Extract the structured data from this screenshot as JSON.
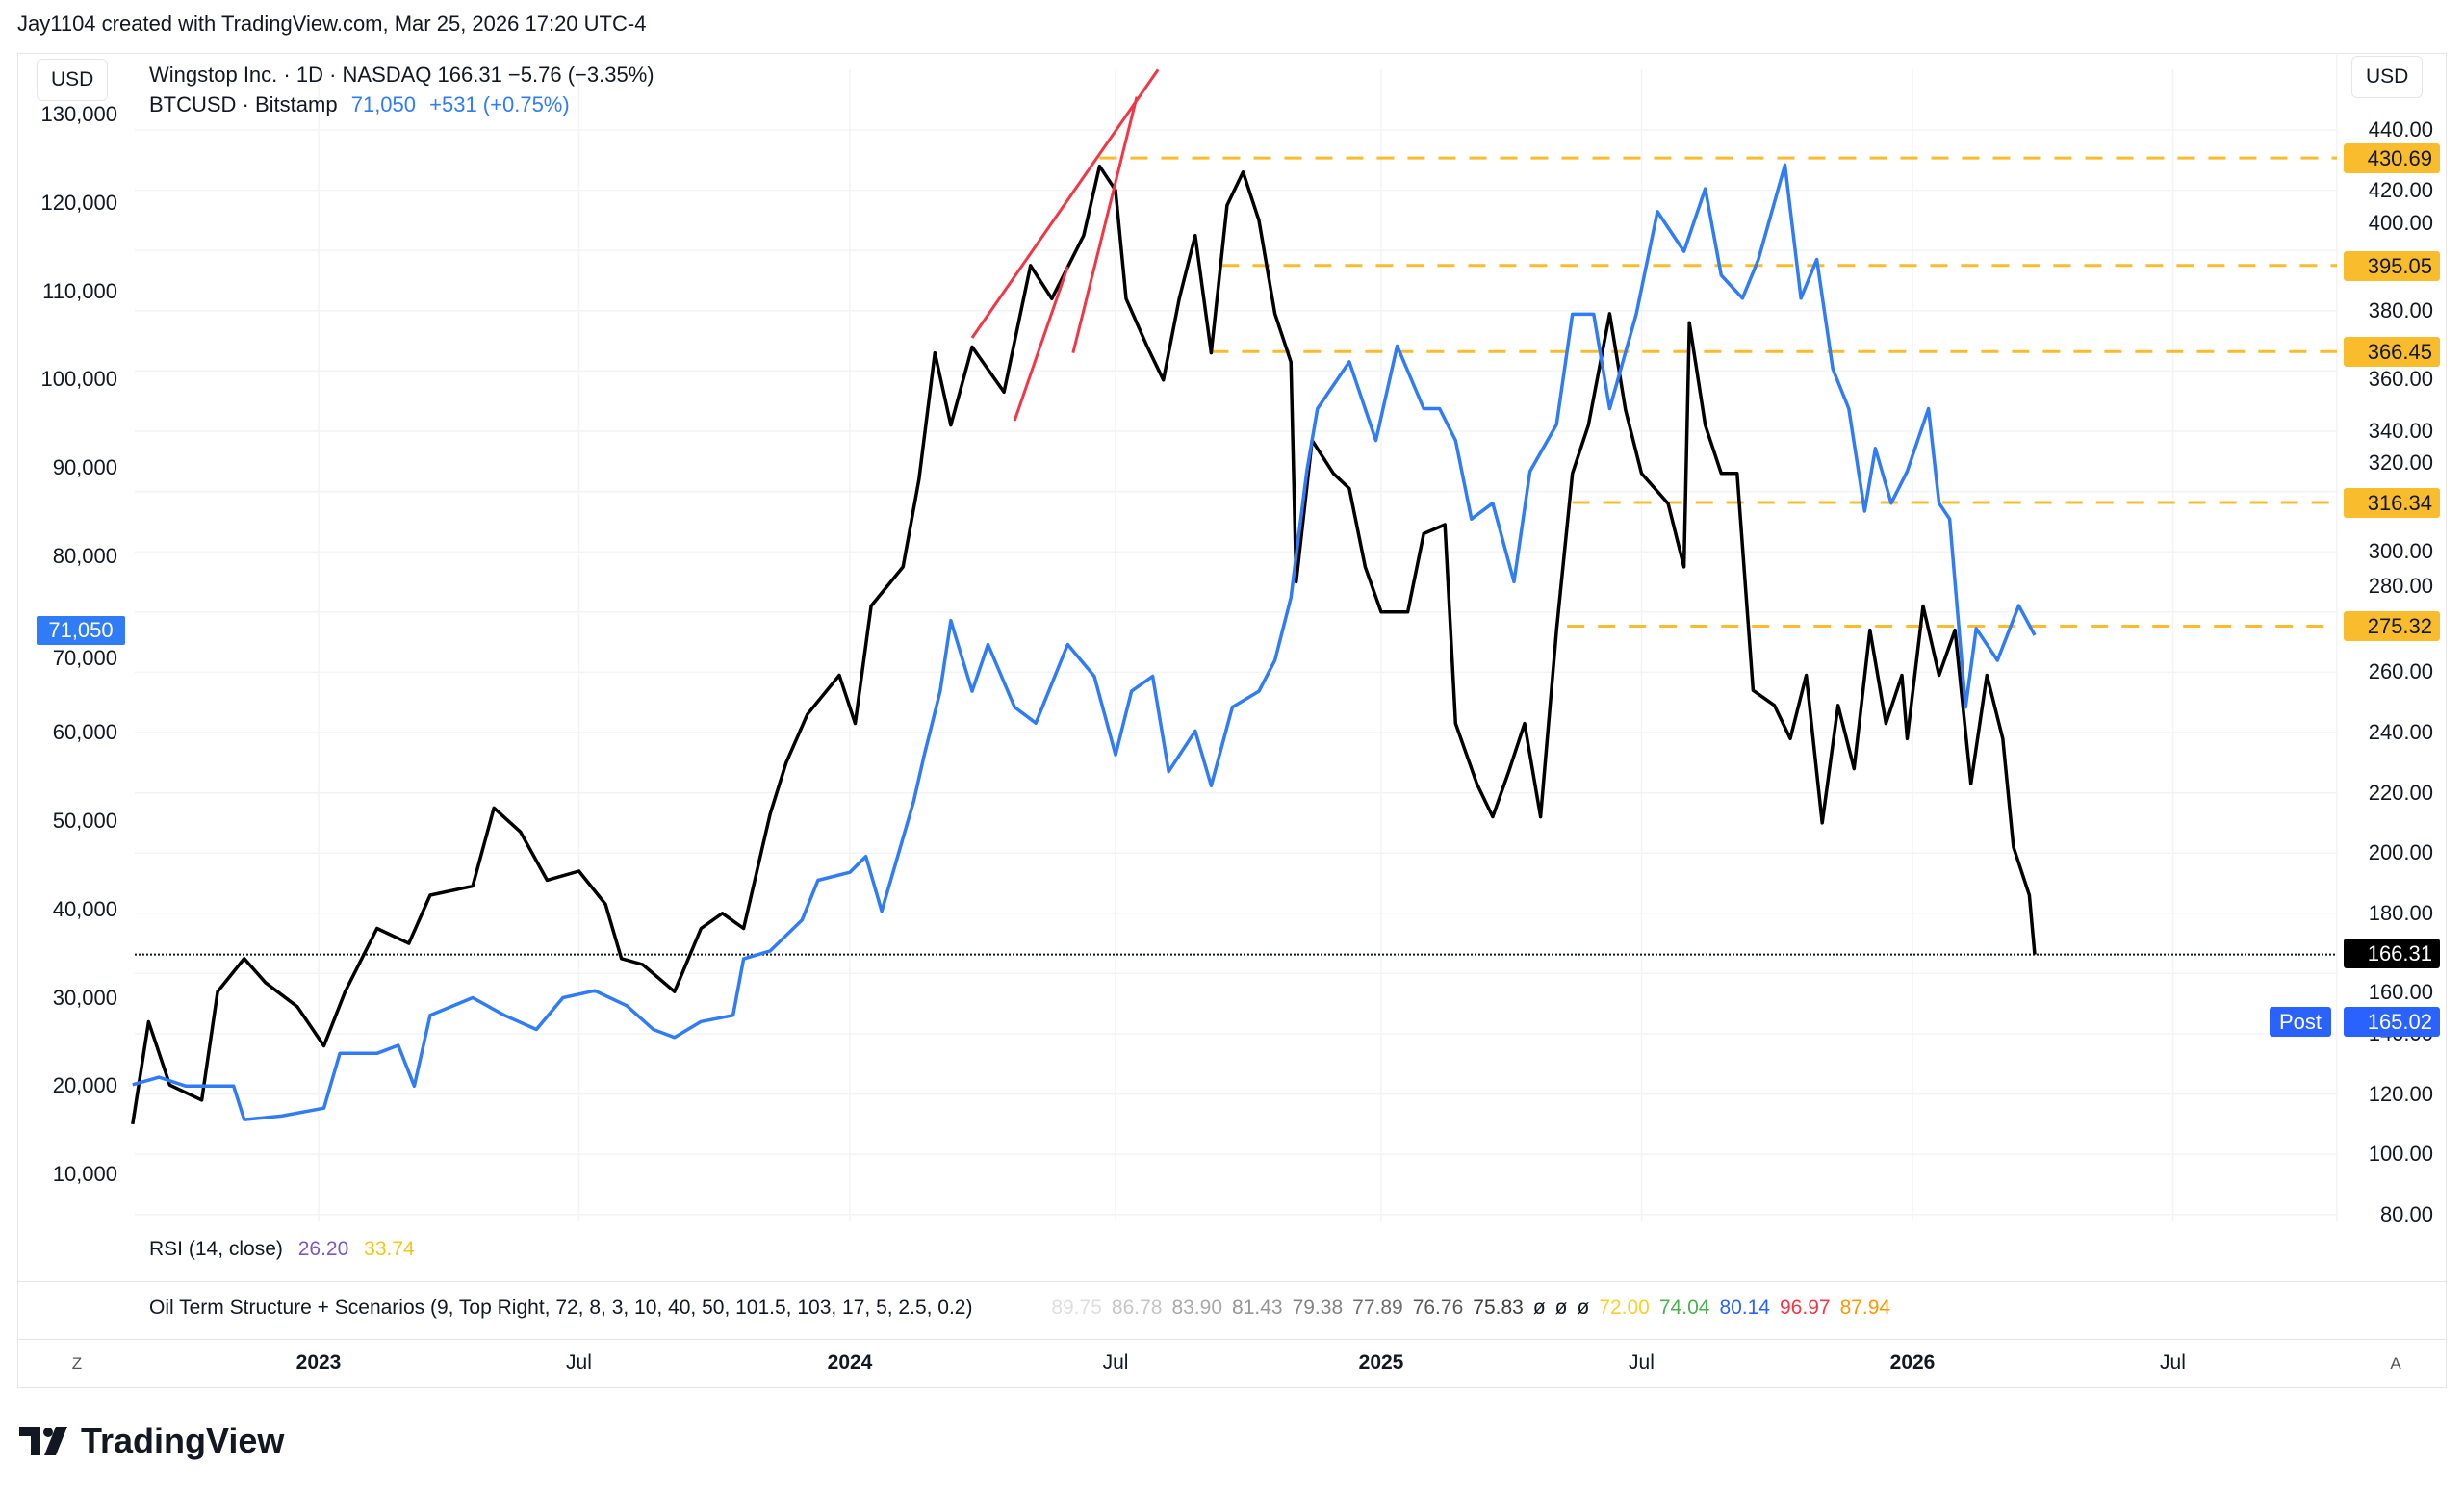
{
  "header": {
    "credit": "Jay1104 created with TradingView.com, Mar 25, 2026 17:20 UTC-4"
  },
  "legend": {
    "main": "Wingstop Inc. · 1D · NASDAQ  166.31  −5.76 (−3.35%)",
    "compare_name": "BTCUSD · Bitstamp",
    "compare_price": "71,050",
    "compare_change": "+531 (+0.75%)"
  },
  "currency_left": "USD",
  "currency_right": "USD",
  "indicators": {
    "rsi": {
      "label": "RSI (14, close)",
      "v1": "26.20",
      "v2": "33.74",
      "c1": "#7e57c2",
      "c2": "#f5c518"
    },
    "oil": {
      "label": "Oil Term Structure + Scenarios (9, Top Right, 72, 8, 3, 10, 40, 50, 101.5, 103, 17, 5, 2.5, 0.2)",
      "values": [
        {
          "t": "89.75",
          "c": "#dedede"
        },
        {
          "t": "86.78",
          "c": "#c6c6c6"
        },
        {
          "t": "83.90",
          "c": "#a9a9a9"
        },
        {
          "t": "81.43",
          "c": "#959595"
        },
        {
          "t": "79.38",
          "c": "#838383"
        },
        {
          "t": "77.89",
          "c": "#6e6e6e"
        },
        {
          "t": "76.76",
          "c": "#595959"
        },
        {
          "t": "75.83",
          "c": "#3e3e3e"
        },
        {
          "t": "ø",
          "c": "#131722"
        },
        {
          "t": "ø",
          "c": "#131722"
        },
        {
          "t": "ø",
          "c": "#131722"
        },
        {
          "t": "72.00",
          "c": "#f9cf2a"
        },
        {
          "t": "74.04",
          "c": "#4caf50"
        },
        {
          "t": "80.14",
          "c": "#2962ff"
        },
        {
          "t": "96.97",
          "c": "#f23645"
        },
        {
          "t": "87.94",
          "c": "#ff9800"
        }
      ]
    }
  },
  "time_axis": {
    "ticks": [
      {
        "label": "2023",
        "x": 2023.0,
        "bold": true
      },
      {
        "label": "Jul",
        "x": 2023.49,
        "bold": false
      },
      {
        "label": "2024",
        "x": 2024.0,
        "bold": true
      },
      {
        "label": "Jul",
        "x": 2024.5,
        "bold": false
      },
      {
        "label": "2025",
        "x": 2025.0,
        "bold": true
      },
      {
        "label": "Jul",
        "x": 2025.49,
        "bold": false
      },
      {
        "label": "2026",
        "x": 2026.0,
        "bold": true
      },
      {
        "label": "Jul",
        "x": 2026.49,
        "bold": false
      }
    ],
    "left_btn": "Z",
    "right_btn": "A"
  },
  "logo": "TradingView",
  "chart_data": {
    "type": "line",
    "x_unit": "decimal year",
    "xlim": [
      2022.62,
      2026.91
    ],
    "left_axis": {
      "ticks": [
        "130,000",
        "120,000",
        "110,000",
        "100,000",
        "90,000",
        "80,000",
        "70,000",
        "60,000",
        "50,000",
        "40,000",
        "30,000",
        "20,000",
        "10,000"
      ],
      "values": [
        130000,
        120000,
        110000,
        100000,
        90000,
        80000,
        70000,
        60000,
        50000,
        40000,
        30000,
        20000,
        10000
      ],
      "last_label": "71,050",
      "last_value": 71050
    },
    "right_axis": {
      "ticks": [
        "440.00",
        "420.00",
        "400.00",
        "380.00",
        "360.00",
        "340.00",
        "320.00",
        "300.00",
        "280.00",
        "260.00",
        "240.00",
        "220.00",
        "200.00",
        "180.00",
        "160.00",
        "140.00",
        "120.00",
        "100.00",
        "80.00"
      ],
      "values": [
        440,
        420,
        400,
        380,
        360,
        340,
        320,
        300,
        280,
        260,
        240,
        220,
        200,
        180,
        160,
        140,
        120,
        100,
        80
      ]
    },
    "series": [
      {
        "name": "Wingstop Inc. (WING)",
        "axis": "right",
        "color": "#000000",
        "x": [
          2022.65,
          2022.68,
          2022.72,
          2022.78,
          2022.81,
          2022.86,
          2022.9,
          2022.96,
          2023.01,
          2023.05,
          2023.11,
          2023.17,
          2023.21,
          2023.29,
          2023.33,
          2023.38,
          2023.43,
          2023.49,
          2023.54,
          2023.57,
          2023.61,
          2023.67,
          2023.72,
          2023.76,
          2023.8,
          2023.85,
          2023.88,
          2023.92,
          2023.98,
          2024.01,
          2024.04,
          2024.1,
          2024.13,
          2024.16,
          2024.19,
          2024.23,
          2024.29,
          2024.34,
          2024.38,
          2024.44,
          2024.47,
          2024.5,
          2024.52,
          2024.56,
          2024.59,
          2024.62,
          2024.65,
          2024.68,
          2024.71,
          2024.74,
          2024.77,
          2024.8,
          2024.83,
          2024.84,
          2024.87,
          2024.91,
          2024.94,
          2024.97,
          2025.0,
          2025.05,
          2025.08,
          2025.12,
          2025.14,
          2025.18,
          2025.21,
          2025.24,
          2025.27,
          2025.3,
          2025.33,
          2025.36,
          2025.39,
          2025.43,
          2025.46,
          2025.49,
          2025.54,
          2025.57,
          2025.58,
          2025.61,
          2025.64,
          2025.67,
          2025.7,
          2025.74,
          2025.77,
          2025.8,
          2025.83,
          2025.86,
          2025.89,
          2025.92,
          2025.95,
          2025.98,
          2025.99,
          2026.02,
          2026.05,
          2026.08,
          2026.11,
          2026.14,
          2026.17,
          2026.19,
          2026.22,
          2026.23
        ],
        "y": [
          110,
          144,
          123,
          118,
          154,
          165,
          157,
          149,
          136,
          154,
          175,
          170,
          186,
          189,
          215,
          207,
          191,
          194,
          183,
          165,
          163,
          154,
          175,
          180,
          175,
          213,
          230,
          246,
          259,
          243,
          282,
          295,
          324,
          366,
          342,
          368,
          353,
          395,
          384,
          405,
          428,
          420,
          384,
          368,
          357,
          384,
          405,
          366,
          415,
          426,
          410,
          379,
          363,
          290,
          337,
          326,
          321,
          295,
          280,
          280,
          306,
          309,
          243,
          223,
          212,
          227,
          243,
          212,
          274,
          326,
          342,
          379,
          347,
          326,
          316,
          295,
          376,
          342,
          326,
          326,
          254,
          249,
          238,
          259,
          210,
          249,
          228,
          274,
          243,
          259,
          238,
          282,
          259,
          274,
          223,
          259,
          238,
          202,
          186,
          166.31
        ]
      },
      {
        "name": "BTCUSD · Bitstamp",
        "axis": "left",
        "color": "#2f7cf6",
        "x": [
          2022.65,
          2022.7,
          2022.75,
          2022.84,
          2022.86,
          2022.93,
          2023.01,
          2023.04,
          2023.11,
          2023.15,
          2023.18,
          2023.21,
          2023.29,
          2023.35,
          2023.41,
          2023.46,
          2023.52,
          2023.58,
          2023.63,
          2023.67,
          2023.72,
          2023.78,
          2023.8,
          2023.85,
          2023.91,
          2023.94,
          2024.0,
          2024.03,
          2024.06,
          2024.12,
          2024.14,
          2024.17,
          2024.19,
          2024.23,
          2024.26,
          2024.31,
          2024.35,
          2024.41,
          2024.46,
          2024.5,
          2024.53,
          2024.57,
          2024.6,
          2024.65,
          2024.68,
          2024.72,
          2024.77,
          2024.8,
          2024.83,
          2024.86,
          2024.88,
          2024.94,
          2024.99,
          2025.03,
          2025.08,
          2025.11,
          2025.14,
          2025.17,
          2025.21,
          2025.25,
          2025.28,
          2025.33,
          2025.36,
          2025.4,
          2025.43,
          2025.48,
          2025.52,
          2025.57,
          2025.61,
          2025.64,
          2025.68,
          2025.71,
          2025.76,
          2025.79,
          2025.82,
          2025.85,
          2025.88,
          2025.91,
          2025.93,
          2025.96,
          2025.99,
          2026.03,
          2026.05,
          2026.07,
          2026.1,
          2026.12,
          2026.16,
          2026.2,
          2026.23
        ],
        "y": [
          20160,
          21000,
          20000,
          20000,
          16200,
          16600,
          17500,
          23700,
          23700,
          24600,
          20000,
          28000,
          30000,
          28000,
          26400,
          30000,
          30800,
          29100,
          26400,
          25500,
          27300,
          28000,
          34400,
          35300,
          38800,
          43300,
          44200,
          46000,
          39800,
          52200,
          57500,
          64700,
          72700,
          64700,
          70000,
          62900,
          61100,
          70000,
          66400,
          57500,
          64700,
          66400,
          55600,
          60200,
          54000,
          62900,
          64700,
          68200,
          75300,
          89600,
          96700,
          102000,
          93100,
          103800,
          96700,
          96700,
          93100,
          84200,
          86000,
          77100,
          89600,
          94900,
          107400,
          107400,
          96700,
          107400,
          119000,
          114500,
          121600,
          111800,
          109200,
          113600,
          124300,
          109200,
          113600,
          101200,
          96700,
          85100,
          92200,
          86000,
          89600,
          96700,
          86000,
          84200,
          62900,
          71800,
          68200,
          74400,
          71050
        ]
      }
    ],
    "horizontal_levels": [
      {
        "label": "430.69",
        "value": 430.69,
        "from": 2024.47
      },
      {
        "label": "395.05",
        "value": 395.05,
        "from": 2024.7
      },
      {
        "label": "366.45",
        "value": 366.45,
        "from": 2024.68
      },
      {
        "label": "316.34",
        "value": 316.34,
        "from": 2025.36
      },
      {
        "label": "275.32",
        "value": 275.32,
        "from": 2025.35
      }
    ],
    "level_color": "#f9bc2c",
    "trendlines": [
      {
        "x1": 2024.23,
        "y1": 371,
        "x2": 2024.58,
        "y2": 460
      },
      {
        "x1": 2024.31,
        "y1": 343.5,
        "x2": 2024.41,
        "y2": 394.6
      },
      {
        "x1": 2024.42,
        "y1": 366,
        "x2": 2024.54,
        "y2": 451
      }
    ],
    "trend_color": "#f23645",
    "last_price": {
      "label": "166.31",
      "value": 166.31
    },
    "post_market": {
      "tag": "Post",
      "label": "165.02",
      "value": 165.02
    }
  }
}
